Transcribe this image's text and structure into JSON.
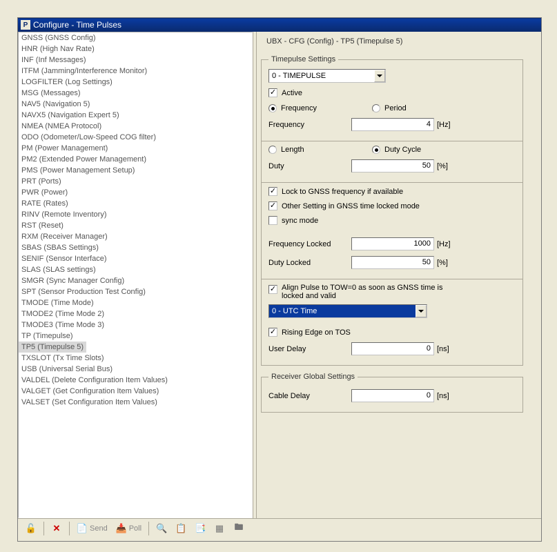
{
  "window": {
    "title": "Configure - Time Pulses",
    "icon_letter": "P"
  },
  "sidebar": {
    "selected_index": 30,
    "items": [
      "GNSS (GNSS Config)",
      "HNR (High Nav Rate)",
      "INF (Inf Messages)",
      "ITFM (Jamming/Interference Monitor)",
      "LOGFILTER (Log Settings)",
      "MSG (Messages)",
      "NAV5 (Navigation 5)",
      "NAVX5 (Navigation Expert 5)",
      "NMEA (NMEA Protocol)",
      "ODO (Odometer/Low-Speed COG filter)",
      "PM (Power Management)",
      "PM2 (Extended Power Management)",
      "PMS (Power Management Setup)",
      "PRT (Ports)",
      "PWR (Power)",
      "RATE (Rates)",
      "RINV (Remote Inventory)",
      "RST (Reset)",
      "RXM (Receiver Manager)",
      "SBAS (SBAS Settings)",
      "SENIF (Sensor Interface)",
      "SLAS (SLAS settings)",
      "SMGR (Sync Manager Config)",
      "SPT (Sensor Production Test Config)",
      "TMODE (Time Mode)",
      "TMODE2 (Time Mode 2)",
      "TMODE3 (Time Mode 3)",
      "TP (Timepulse)",
      "TP5 (Timepulse 5)",
      "TXSLOT (Tx Time Slots)",
      "USB (Universal Serial Bus)",
      "VALDEL (Delete Configuration Item Values)",
      "VALGET (Get Configuration Item Values)",
      "VALSET (Set Configuration Item Values)"
    ]
  },
  "breadcrumb": "UBX - CFG (Config) - TP5 (Timepulse 5)",
  "fieldset1": {
    "legend": "Timepulse Settings",
    "timepulse_select": "0 - TIMEPULSE",
    "active": {
      "label": "Active",
      "checked": true
    },
    "freq_period": {
      "freq_label": "Frequency",
      "period_label": "Period",
      "selected": "frequency"
    },
    "frequency": {
      "label": "Frequency",
      "value": "4",
      "unit": "[Hz]"
    },
    "length_duty": {
      "length_label": "Length",
      "duty_label": "Duty Cycle",
      "selected": "duty"
    },
    "duty": {
      "label": "Duty",
      "value": "50",
      "unit": "[%]"
    },
    "lock_gnss": {
      "label": "Lock to GNSS frequency if available",
      "checked": true
    },
    "other_setting": {
      "label": "Other Setting in GNSS time locked mode",
      "checked": true
    },
    "sync_mode": {
      "label": "sync mode",
      "checked": false
    },
    "freq_locked": {
      "label": "Frequency Locked",
      "value": "1000",
      "unit": "[Hz]"
    },
    "duty_locked": {
      "label": "Duty Locked",
      "value": "50",
      "unit": "[%]"
    },
    "align_pulse": {
      "label": "Align Pulse to TOW=0 as soon as GNSS time is locked and valid",
      "checked": true
    },
    "time_select": "0 - UTC Time",
    "rising_edge": {
      "label": "Rising Edge on TOS",
      "checked": true
    },
    "user_delay": {
      "label": "User Delay",
      "value": "0",
      "unit": "[ns]"
    }
  },
  "fieldset2": {
    "legend": "Receiver Global Settings",
    "cable_delay": {
      "label": "Cable Delay",
      "value": "0",
      "unit": "[ns]"
    }
  },
  "toolbar": {
    "send": "Send",
    "poll": "Poll"
  }
}
